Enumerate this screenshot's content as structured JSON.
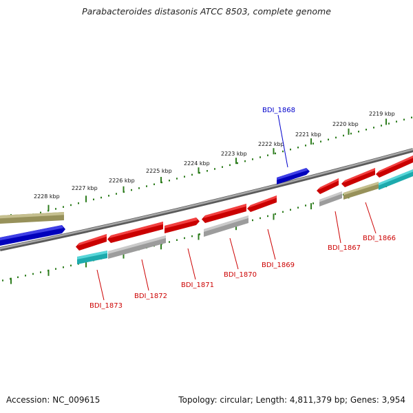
{
  "title": "Parabacteroides distasonis ATCC 8503, complete genome",
  "footer": {
    "accession": "Accession: NC_009615",
    "summary": "Topology: circular; Length: 4,811,379 bp; Genes: 3,954"
  },
  "colors": {
    "backbone": "#808080",
    "ruler": "#2e7d1e",
    "gene_red": "#ee0000",
    "gene_blue": "#0000dd",
    "gene_khaki": "#b2aa6a",
    "gene_gray": "#b8b8b8",
    "gene_cyan": "#22c8cc",
    "label_red": "#cc0000",
    "label_blue": "#0000cc"
  },
  "ruler_labels": [
    "2228 kbp",
    "2227 kbp",
    "2226 kbp",
    "2225 kbp",
    "2224 kbp",
    "2223 kbp",
    "2222 kbp",
    "2221 kbp",
    "2220 kbp",
    "2219 kbp"
  ],
  "gene_labels": [
    {
      "text": "BDI_1868",
      "color": "blue"
    },
    {
      "text": "BDI_1866",
      "color": "red"
    },
    {
      "text": "BDI_1867",
      "color": "red"
    },
    {
      "text": "BDI_1869",
      "color": "red"
    },
    {
      "text": "BDI_1870",
      "color": "red"
    },
    {
      "text": "BDI_1871",
      "color": "red"
    },
    {
      "text": "BDI_1872",
      "color": "red"
    },
    {
      "text": "BDI_1873",
      "color": "red"
    }
  ]
}
